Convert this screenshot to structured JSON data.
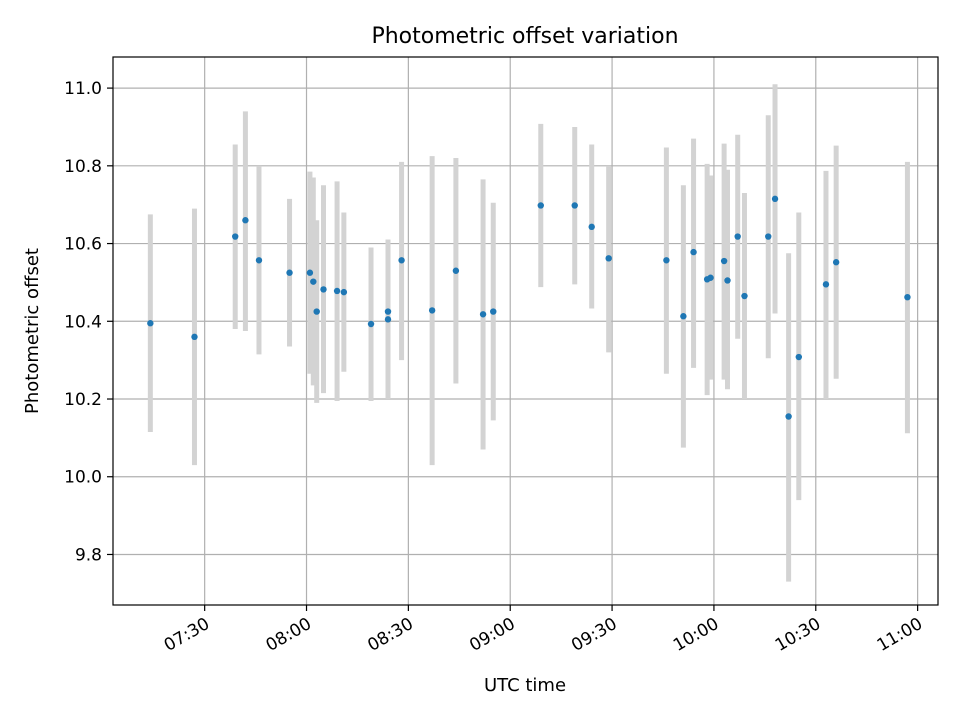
{
  "chart_data": {
    "type": "scatter",
    "title": "Photometric offset variation",
    "xlabel": "UTC time",
    "ylabel": "Photometric offset",
    "x_axis_kind": "time",
    "xlim": [
      "07:03",
      "11:06"
    ],
    "ylim": [
      9.67,
      11.08
    ],
    "x_ticks": [
      "07:30",
      "08:00",
      "08:30",
      "09:00",
      "09:30",
      "10:00",
      "10:30",
      "11:00"
    ],
    "y_ticks": [
      9.8,
      10.0,
      10.2,
      10.4,
      10.6,
      10.8,
      11.0
    ],
    "y_tick_labels": [
      "9.8",
      "10.0",
      "10.2",
      "10.4",
      "10.6",
      "10.8",
      "11.0"
    ],
    "grid": true,
    "colors": {
      "points": "#1f77b4",
      "error_bars": "#d3d3d3",
      "grid": "#b0b0b0"
    },
    "points": [
      {
        "x": "07:14",
        "y": 10.395,
        "lo": 10.115,
        "hi": 10.675
      },
      {
        "x": "07:27",
        "y": 10.36,
        "lo": 10.03,
        "hi": 10.69
      },
      {
        "x": "07:39",
        "y": 10.618,
        "lo": 10.38,
        "hi": 10.855
      },
      {
        "x": "07:42",
        "y": 10.66,
        "lo": 10.375,
        "hi": 10.94
      },
      {
        "x": "07:46",
        "y": 10.557,
        "lo": 10.315,
        "hi": 10.8
      },
      {
        "x": "07:55",
        "y": 10.525,
        "lo": 10.335,
        "hi": 10.715
      },
      {
        "x": "08:01",
        "y": 10.525,
        "lo": 10.265,
        "hi": 10.785
      },
      {
        "x": "08:02",
        "y": 10.502,
        "lo": 10.235,
        "hi": 10.77
      },
      {
        "x": "08:03",
        "y": 10.425,
        "lo": 10.19,
        "hi": 10.66
      },
      {
        "x": "08:05",
        "y": 10.482,
        "lo": 10.215,
        "hi": 10.75
      },
      {
        "x": "08:09",
        "y": 10.478,
        "lo": 10.195,
        "hi": 10.76
      },
      {
        "x": "08:11",
        "y": 10.475,
        "lo": 10.27,
        "hi": 10.68
      },
      {
        "x": "08:19",
        "y": 10.393,
        "lo": 10.195,
        "hi": 10.59
      },
      {
        "x": "08:24",
        "y": 10.405,
        "lo": 10.2,
        "hi": 10.61
      },
      {
        "x": "08:24",
        "y": 10.425,
        "lo": 10.2,
        "hi": 10.61
      },
      {
        "x": "08:28",
        "y": 10.557,
        "lo": 10.3,
        "hi": 10.81
      },
      {
        "x": "08:37",
        "y": 10.428,
        "lo": 10.03,
        "hi": 10.825
      },
      {
        "x": "08:44",
        "y": 10.53,
        "lo": 10.24,
        "hi": 10.82
      },
      {
        "x": "08:52",
        "y": 10.418,
        "lo": 10.07,
        "hi": 10.765
      },
      {
        "x": "08:55",
        "y": 10.425,
        "lo": 10.145,
        "hi": 10.705
      },
      {
        "x": "09:09",
        "y": 10.698,
        "lo": 10.488,
        "hi": 10.908
      },
      {
        "x": "09:19",
        "y": 10.698,
        "lo": 10.495,
        "hi": 10.9
      },
      {
        "x": "09:24",
        "y": 10.643,
        "lo": 10.433,
        "hi": 10.855
      },
      {
        "x": "09:29",
        "y": 10.562,
        "lo": 10.32,
        "hi": 10.8
      },
      {
        "x": "09:46",
        "y": 10.557,
        "lo": 10.265,
        "hi": 10.847
      },
      {
        "x": "09:51",
        "y": 10.413,
        "lo": 10.075,
        "hi": 10.75
      },
      {
        "x": "09:54",
        "y": 10.578,
        "lo": 10.28,
        "hi": 10.87
      },
      {
        "x": "09:58",
        "y": 10.508,
        "lo": 10.21,
        "hi": 10.805
      },
      {
        "x": "09:59",
        "y": 10.512,
        "lo": 10.25,
        "hi": 10.775
      },
      {
        "x": "10:03",
        "y": 10.555,
        "lo": 10.25,
        "hi": 10.857
      },
      {
        "x": "10:04",
        "y": 10.505,
        "lo": 10.225,
        "hi": 10.79
      },
      {
        "x": "10:07",
        "y": 10.618,
        "lo": 10.355,
        "hi": 10.88
      },
      {
        "x": "10:09",
        "y": 10.465,
        "lo": 10.2,
        "hi": 10.73
      },
      {
        "x": "10:16",
        "y": 10.618,
        "lo": 10.305,
        "hi": 10.93
      },
      {
        "x": "10:18",
        "y": 10.715,
        "lo": 10.42,
        "hi": 11.01
      },
      {
        "x": "10:22",
        "y": 10.155,
        "lo": 9.73,
        "hi": 10.575
      },
      {
        "x": "10:25",
        "y": 10.308,
        "lo": 9.94,
        "hi": 10.68
      },
      {
        "x": "10:33",
        "y": 10.495,
        "lo": 10.2,
        "hi": 10.787
      },
      {
        "x": "10:36",
        "y": 10.552,
        "lo": 10.252,
        "hi": 10.852
      },
      {
        "x": "10:57",
        "y": 10.462,
        "lo": 10.112,
        "hi": 10.81
      }
    ]
  }
}
